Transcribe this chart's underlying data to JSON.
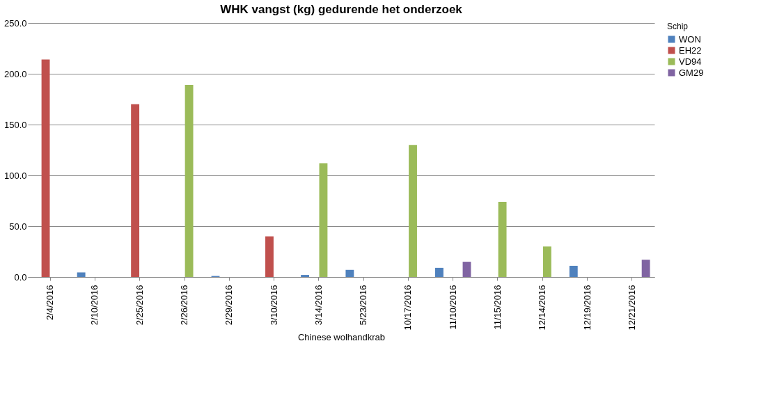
{
  "chart_data": {
    "type": "bar",
    "title": "WHK vangst (kg) gedurende het onderzoek",
    "xlabel": "Chinese wolhandkrab",
    "legend_title": "Schip",
    "categories": [
      "2/4/2016",
      "2/10/2016",
      "2/25/2016",
      "2/26/2016",
      "2/29/2016",
      "3/10/2016",
      "3/14/2016",
      "5/23/2016",
      "10/17/2016",
      "11/10/2016",
      "11/15/2016",
      "12/14/2016",
      "12/19/2016",
      "12/21/2016"
    ],
    "series": [
      {
        "name": "WON",
        "color": "#4f81bd",
        "values": [
          null,
          4.5,
          null,
          null,
          1,
          null,
          2,
          7,
          null,
          9,
          null,
          null,
          11,
          null
        ]
      },
      {
        "name": "EH22",
        "color": "#c0504d",
        "values": [
          214,
          null,
          170,
          null,
          null,
          40,
          null,
          null,
          null,
          null,
          null,
          null,
          null,
          null
        ]
      },
      {
        "name": "VD94",
        "color": "#9bbb59",
        "values": [
          null,
          null,
          null,
          189,
          null,
          null,
          112,
          null,
          130,
          null,
          74,
          30,
          null,
          null
        ]
      },
      {
        "name": "GM29",
        "color": "#8064a2",
        "values": [
          null,
          null,
          null,
          null,
          null,
          null,
          null,
          null,
          null,
          15,
          null,
          null,
          null,
          17
        ]
      }
    ],
    "ylim": [
      0,
      250
    ],
    "yticks": [
      {
        "value": 0,
        "label": "0.0"
      },
      {
        "value": 50,
        "label": "50.0"
      },
      {
        "value": 100,
        "label": "100.0"
      },
      {
        "value": 150,
        "label": "150.0"
      },
      {
        "value": 200,
        "label": "200.0"
      },
      {
        "value": 250,
        "label": "250.0"
      }
    ],
    "grid": "y",
    "legend": "right"
  }
}
